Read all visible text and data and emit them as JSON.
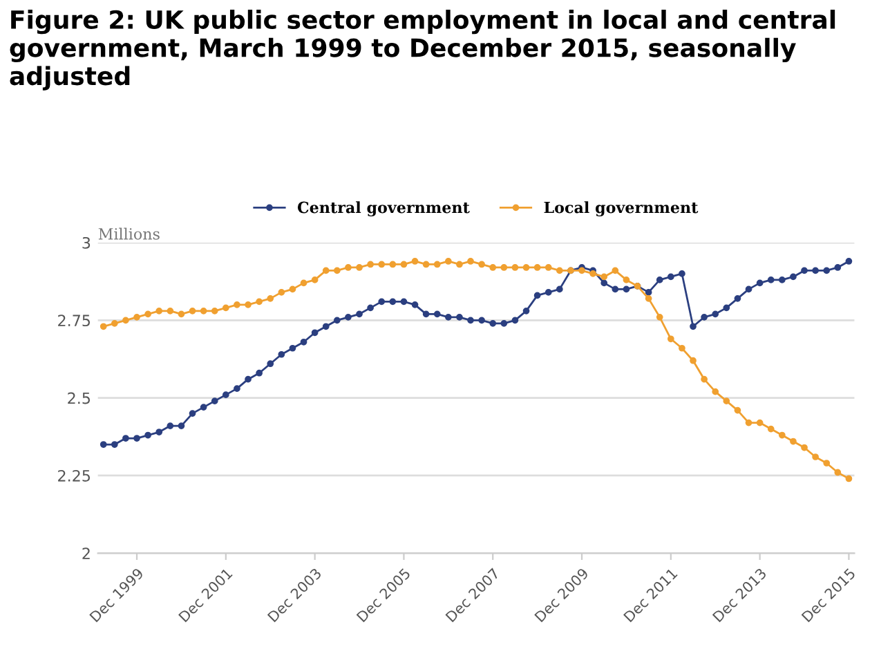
{
  "chart_data": {
    "type": "line",
    "title": "Figure 2: UK public sector employment in local and central government, March 1999 to December 2015, seasonally adjusted",
    "ylabel": "Millions",
    "categories": [
      null,
      null,
      null,
      "Dec 1999",
      null,
      null,
      null,
      null,
      null,
      null,
      null,
      "Dec 2001",
      null,
      null,
      null,
      null,
      null,
      null,
      null,
      "Dec 2003",
      null,
      null,
      null,
      null,
      null,
      null,
      null,
      "Dec 2005",
      null,
      null,
      null,
      null,
      null,
      null,
      null,
      "Dec 2007",
      null,
      null,
      null,
      null,
      null,
      null,
      null,
      "Dec 2009",
      null,
      null,
      null,
      null,
      null,
      null,
      null,
      "Dec 2011",
      null,
      null,
      null,
      null,
      null,
      null,
      null,
      "Dec 2013",
      null,
      null,
      null,
      null,
      null,
      null,
      null,
      "Dec 2015"
    ],
    "series": [
      {
        "name": "Central government",
        "color": "#2b3f80",
        "values": [
          2.35,
          2.35,
          2.37,
          2.37,
          2.38,
          2.39,
          2.41,
          2.41,
          2.45,
          2.47,
          2.49,
          2.51,
          2.53,
          2.56,
          2.58,
          2.61,
          2.64,
          2.66,
          2.68,
          2.71,
          2.73,
          2.75,
          2.76,
          2.77,
          2.79,
          2.81,
          2.81,
          2.81,
          2.8,
          2.77,
          2.77,
          2.76,
          2.76,
          2.75,
          2.75,
          2.74,
          2.74,
          2.75,
          2.78,
          2.83,
          2.84,
          2.85,
          2.91,
          2.92,
          2.91,
          2.87,
          2.85,
          2.85,
          2.86,
          2.84,
          2.88,
          2.89,
          2.9,
          2.73,
          2.76,
          2.77,
          2.79,
          2.82,
          2.85,
          2.87,
          2.88,
          2.88,
          2.89,
          2.91,
          2.91,
          2.91,
          2.92,
          2.94
        ]
      },
      {
        "name": "Local government",
        "color": "#f0a030",
        "values": [
          2.73,
          2.74,
          2.75,
          2.76,
          2.77,
          2.78,
          2.78,
          2.77,
          2.78,
          2.78,
          2.78,
          2.79,
          2.8,
          2.8,
          2.81,
          2.82,
          2.84,
          2.85,
          2.87,
          2.88,
          2.91,
          2.91,
          2.92,
          2.92,
          2.93,
          2.93,
          2.93,
          2.93,
          2.94,
          2.93,
          2.93,
          2.94,
          2.93,
          2.94,
          2.93,
          2.92,
          2.92,
          2.92,
          2.92,
          2.92,
          2.92,
          2.91,
          2.91,
          2.91,
          2.9,
          2.89,
          2.91,
          2.88,
          2.86,
          2.82,
          2.76,
          2.69,
          2.66,
          2.62,
          2.56,
          2.52,
          2.49,
          2.46,
          2.42,
          2.42,
          2.4,
          2.38,
          2.36,
          2.34,
          2.31,
          2.29,
          2.26,
          2.24
        ]
      }
    ],
    "ylim": [
      2,
      3
    ],
    "yticks": [
      2,
      2.25,
      2.5,
      2.75,
      3
    ],
    "grid": "y",
    "legend": "top",
    "marker": "circle",
    "line_style": "solid"
  }
}
